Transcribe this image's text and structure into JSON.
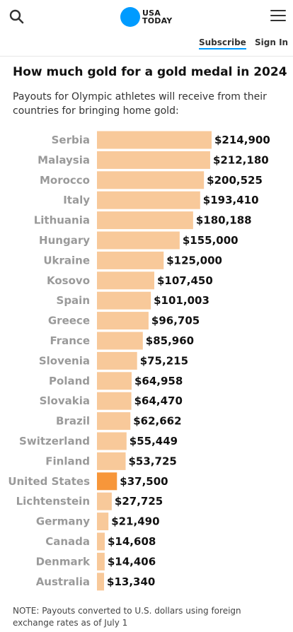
{
  "header": {
    "logo_line1": "USA",
    "logo_line2": "TODAY",
    "subscribe_label": "Subscribe",
    "signin_label": "Sign In",
    "accent_color": "#009bff"
  },
  "article": {
    "title": "How much gold for a gold medal in 2024",
    "subtitle": "Payouts for Olympic athletes will receive from their countries for bringing home gold:",
    "note": "NOTE: Payouts converted to U.S. dollars using foreign exchange rates as of July 1"
  },
  "chart_data": {
    "type": "bar",
    "orientation": "horizontal",
    "categories": [
      "Serbia",
      "Malaysia",
      "Morocco",
      "Italy",
      "Lithuania",
      "Hungary",
      "Ukraine",
      "Kosovo",
      "Spain",
      "Greece",
      "France",
      "Slovenia",
      "Poland",
      "Slovakia",
      "Brazil",
      "Switzerland",
      "Finland",
      "United States",
      "Lichtenstein",
      "Germany",
      "Canada",
      "Denmark",
      "Australia"
    ],
    "values": [
      214900,
      212180,
      200525,
      193410,
      180188,
      155000,
      125000,
      107450,
      101003,
      96705,
      85960,
      75215,
      64958,
      64470,
      62662,
      55449,
      53725,
      37500,
      27725,
      21490,
      14608,
      14406,
      13340
    ],
    "value_labels": [
      "$214,900",
      "$212,180",
      "$200,525",
      "$193,410",
      "$180,188",
      "$155,000",
      "$125,000",
      "$107,450",
      "$101,003",
      "$96,705",
      "$85,960",
      "$75,215",
      "$64,958",
      "$64,470",
      "$62,662",
      "$55,449",
      "$53,725",
      "$37,500",
      "$27,725",
      "$21,490",
      "$14,608",
      "$14,406",
      "$13,340"
    ],
    "highlight": "United States",
    "bar_color": "#f8c99a",
    "highlight_color": "#f7963a",
    "title": "",
    "xlabel": "",
    "ylabel": "",
    "xlim": [
      0,
      214900
    ],
    "grid": false,
    "legend": "none"
  }
}
